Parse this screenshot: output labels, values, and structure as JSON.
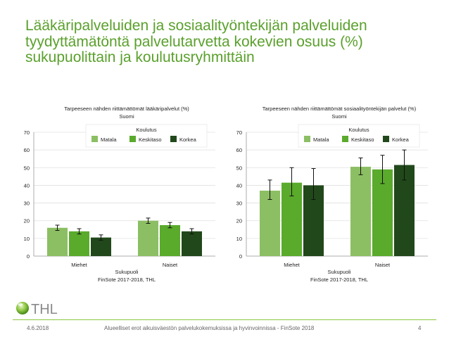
{
  "slide": {
    "title": "Lääkäripalveluiden ja sosiaalityöntekijän palveluiden tyydyttämätöntä palvelutarvetta kokevien osuus (%) sukupuolittain ja koulutusryhmittäin",
    "logo_text": "THL",
    "footer_date": "4.6.2018",
    "footer_text": "Alueelliset erot aikuisväestön palvelukokemuksissa ja hyvinvoinnissa - FinSote 2018",
    "page_number": "4"
  },
  "colors": {
    "title": "#5aa02c",
    "matala": "#8cbf63",
    "keskitaso": "#5aaa2c",
    "korkea": "#21481a",
    "footer_line": "#8cc63f"
  },
  "chart_data": [
    {
      "type": "bar",
      "title": "Tarpeeseen nähden riittämättömät lääkäripalvelut (%)",
      "subtitle": "Suomi",
      "categories": [
        "Miehet",
        "Naiset"
      ],
      "xlabel": "Sukupuoli",
      "ylabel": "",
      "ylim": [
        0,
        70
      ],
      "yticks": [
        0,
        10,
        20,
        30,
        40,
        50,
        60,
        70
      ],
      "grid": true,
      "legend_title": "Koulutus",
      "legend_position": "top-right",
      "series": [
        {
          "name": "Matala",
          "values": [
            16,
            20
          ],
          "ci_low": [
            14.5,
            18.5
          ],
          "ci_high": [
            17.5,
            21.5
          ]
        },
        {
          "name": "Keskitaso",
          "values": [
            14,
            17.5
          ],
          "ci_low": [
            12.5,
            16
          ],
          "ci_high": [
            15.5,
            19
          ]
        },
        {
          "name": "Korkea",
          "values": [
            10.5,
            14
          ],
          "ci_low": [
            9,
            12.5
          ],
          "ci_high": [
            12,
            15.5
          ]
        }
      ],
      "source": "FinSote 2017-2018, THL"
    },
    {
      "type": "bar",
      "title": "Tarpeeseen nähden riittämättömät sosiaalityöntekijän palvelut (%)",
      "subtitle": "Suomi",
      "categories": [
        "Miehet",
        "Naiset"
      ],
      "xlabel": "Sukupuoli",
      "ylabel": "",
      "ylim": [
        0,
        70
      ],
      "yticks": [
        0,
        10,
        20,
        30,
        40,
        50,
        60,
        70
      ],
      "grid": true,
      "legend_title": "Koulutus",
      "legend_position": "top-right",
      "series": [
        {
          "name": "Matala",
          "values": [
            37,
            50.5
          ],
          "ci_low": [
            32,
            46
          ],
          "ci_high": [
            43,
            55.5
          ]
        },
        {
          "name": "Keskitaso",
          "values": [
            41.5,
            49
          ],
          "ci_low": [
            34,
            41
          ],
          "ci_high": [
            50,
            57
          ]
        },
        {
          "name": "Korkea",
          "values": [
            40,
            51.5
          ],
          "ci_low": [
            32,
            43
          ],
          "ci_high": [
            49.5,
            60
          ]
        }
      ],
      "source": "FinSote 2017-2018, THL"
    }
  ]
}
